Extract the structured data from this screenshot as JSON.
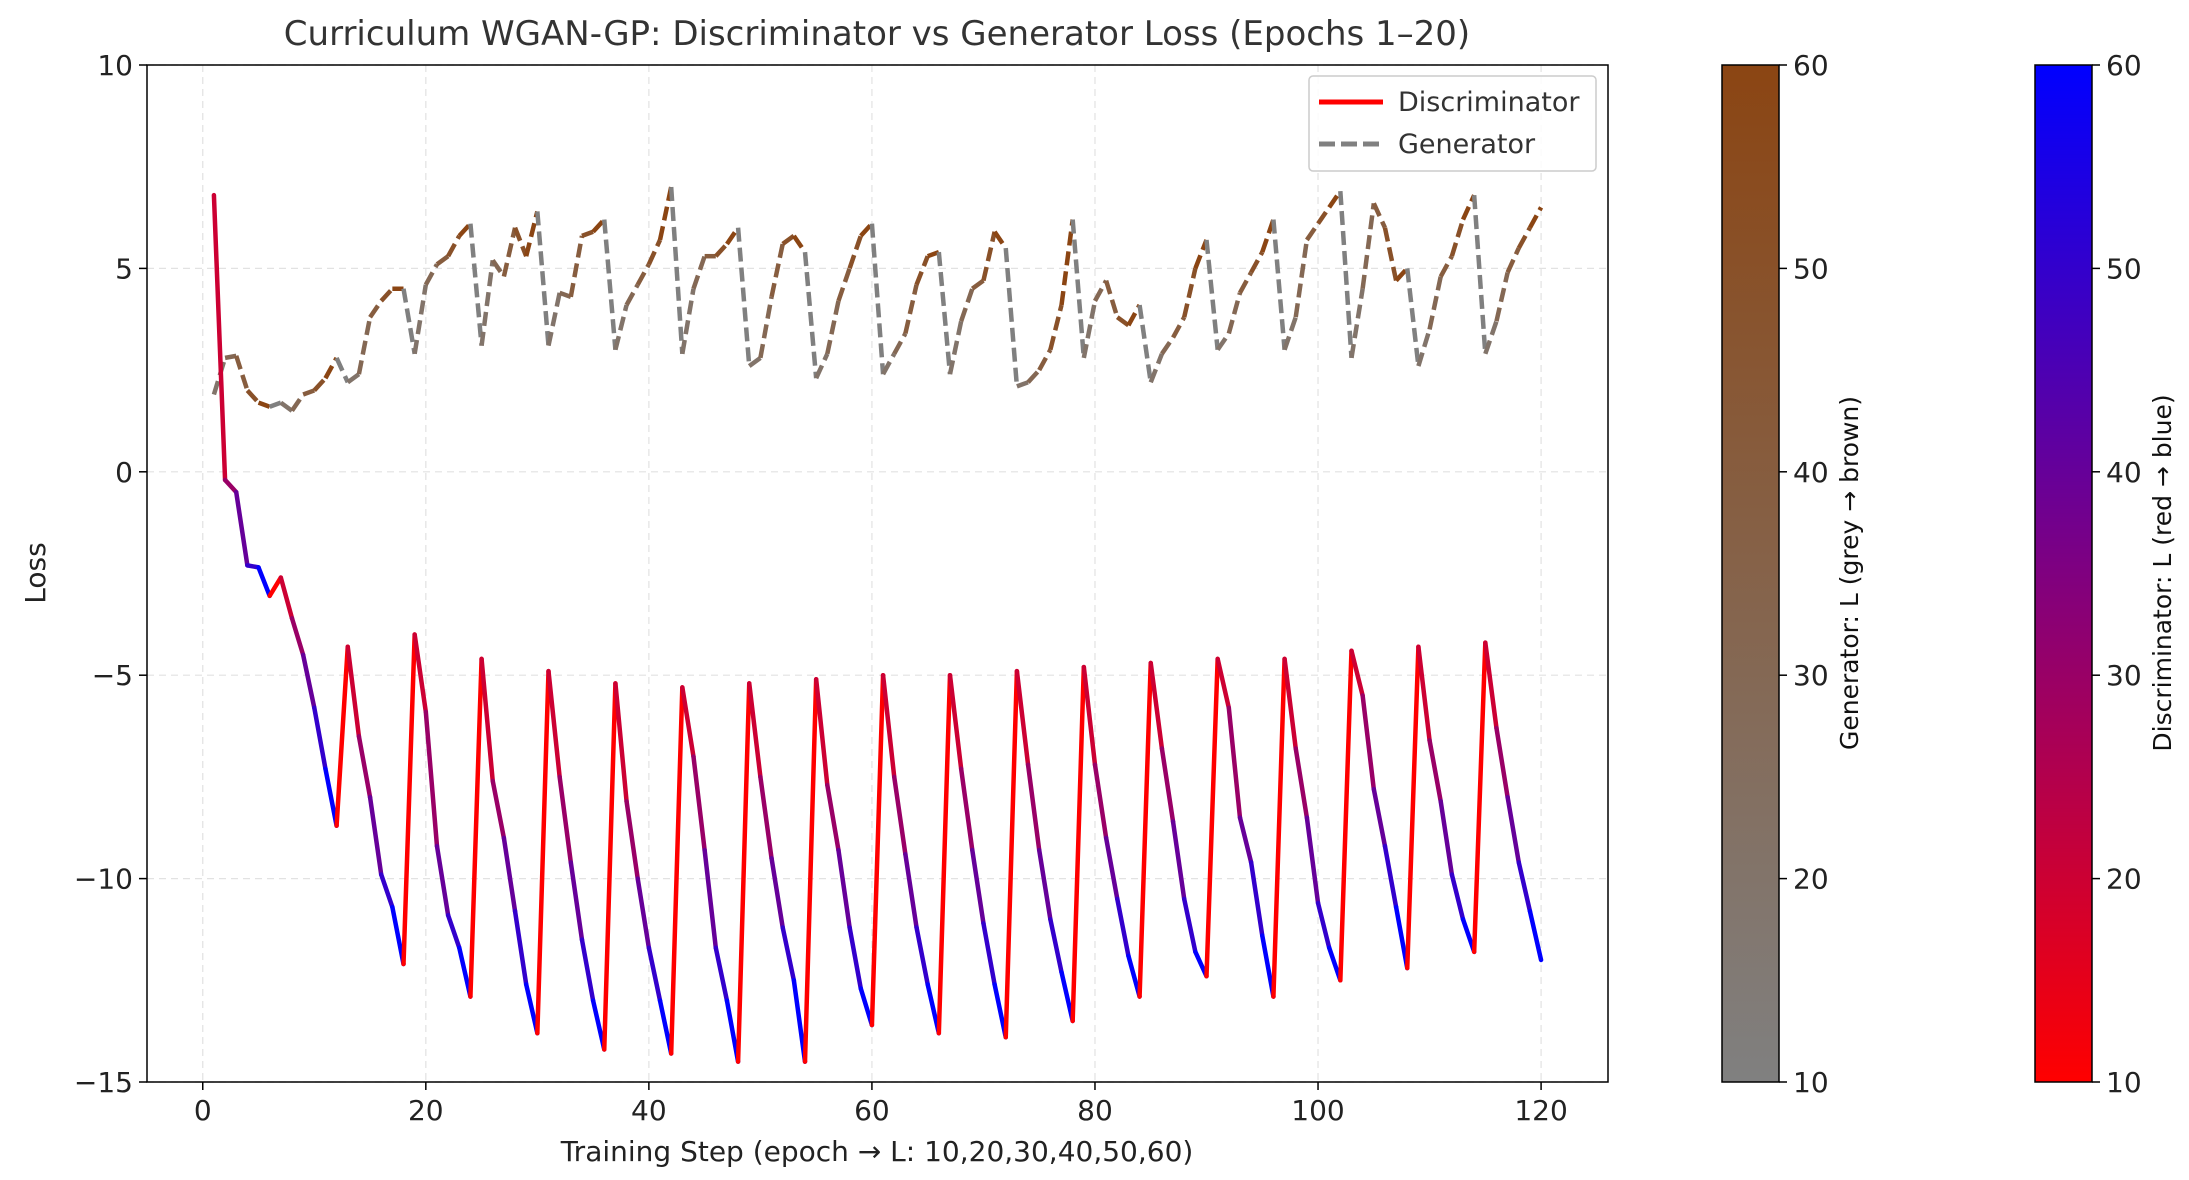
{
  "chart_data": {
    "type": "line",
    "title": "Curriculum WGAN-GP: Discriminator vs Generator Loss (Epochs 1–20)",
    "xlabel": "Training Step (epoch → L: 10,20,30,40,50,60)",
    "ylabel": "Loss",
    "xlim": [
      -5,
      126
    ],
    "ylim": [
      -15,
      10
    ],
    "xticks": [
      0,
      20,
      40,
      60,
      80,
      100,
      120
    ],
    "yticks": [
      10,
      5,
      0,
      -5,
      -10,
      -15
    ],
    "ytick_labels": [
      "10",
      "5",
      "0",
      "−5",
      "−10",
      "−15"
    ],
    "grid": true,
    "legend_position": "top-right",
    "series": [
      {
        "name": "Discriminator",
        "style": "solid",
        "color_from": "#ff0000",
        "color_to": "#0000ff",
        "x": [
          1,
          2,
          3,
          4,
          5,
          6,
          7,
          8,
          9,
          10,
          11,
          12,
          13,
          14,
          15,
          16,
          17,
          18,
          19,
          20,
          21,
          22,
          23,
          24,
          25,
          26,
          27,
          28,
          29,
          30,
          31,
          32,
          33,
          34,
          35,
          36,
          37,
          38,
          39,
          40,
          41,
          42,
          43,
          44,
          45,
          46,
          47,
          48,
          49,
          50,
          51,
          52,
          53,
          54,
          55,
          56,
          57,
          58,
          59,
          60,
          61,
          62,
          63,
          64,
          65,
          66,
          67,
          68,
          69,
          70,
          71,
          72,
          73,
          74,
          75,
          76,
          77,
          78,
          79,
          80,
          81,
          82,
          83,
          84,
          85,
          86,
          87,
          88,
          89,
          90,
          91,
          92,
          93,
          94,
          95,
          96,
          97,
          98,
          99,
          100,
          101,
          102,
          103,
          104,
          105,
          106,
          107,
          108,
          109,
          110,
          111,
          112,
          113,
          114,
          115,
          116,
          117,
          118,
          119,
          120
        ],
        "y": [
          6.8,
          -0.2,
          -0.5,
          -2.3,
          -2.35,
          -3.05,
          -2.6,
          -3.6,
          -4.5,
          -5.8,
          -7.3,
          -8.7,
          -4.3,
          -6.5,
          -8.0,
          -9.9,
          -10.7,
          -12.1,
          -4.0,
          -5.9,
          -9.2,
          -10.9,
          -11.7,
          -12.9,
          -4.6,
          -7.6,
          -9.0,
          -10.8,
          -12.6,
          -13.8,
          -4.9,
          -7.5,
          -9.6,
          -11.5,
          -13.0,
          -14.2,
          -5.2,
          -8.1,
          -10.0,
          -11.7,
          -13.0,
          -14.3,
          -5.3,
          -7.0,
          -9.3,
          -11.7,
          -13.0,
          -14.5,
          -5.2,
          -7.5,
          -9.5,
          -11.2,
          -12.5,
          -14.5,
          -5.1,
          -7.7,
          -9.3,
          -11.2,
          -12.7,
          -13.6,
          -5.0,
          -7.5,
          -9.4,
          -11.2,
          -12.6,
          -13.8,
          -5.0,
          -7.3,
          -9.3,
          -11.1,
          -12.6,
          -13.9,
          -4.9,
          -7.2,
          -9.3,
          -11.0,
          -12.3,
          -13.5,
          -4.8,
          -7.2,
          -9.0,
          -10.5,
          -11.9,
          -12.9,
          -4.7,
          -6.8,
          -8.6,
          -10.5,
          -11.8,
          -12.4,
          -4.6,
          -5.8,
          -8.5,
          -9.6,
          -11.4,
          -12.9,
          -4.6,
          -6.8,
          -8.5,
          -10.6,
          -11.7,
          -12.5,
          -4.4,
          -5.5,
          -7.8,
          -9.2,
          -10.7,
          -12.2,
          -4.3,
          -6.6,
          -8.1,
          -9.9,
          -11.0,
          -11.8,
          -4.2,
          -6.3,
          -8.0,
          -9.6,
          -10.8,
          -12.0
        ]
      },
      {
        "name": "Generator",
        "style": "dashed",
        "color_from": "#808080",
        "color_to": "#8b4513",
        "x": [
          1,
          2,
          3,
          4,
          5,
          6,
          7,
          8,
          9,
          10,
          11,
          12,
          13,
          14,
          15,
          16,
          17,
          18,
          19,
          20,
          21,
          22,
          23,
          24,
          25,
          26,
          27,
          28,
          29,
          30,
          31,
          32,
          33,
          34,
          35,
          36,
          37,
          38,
          39,
          40,
          41,
          42,
          43,
          44,
          45,
          46,
          47,
          48,
          49,
          50,
          51,
          52,
          53,
          54,
          55,
          56,
          57,
          58,
          59,
          60,
          61,
          62,
          63,
          64,
          65,
          66,
          67,
          68,
          69,
          70,
          71,
          72,
          73,
          74,
          75,
          76,
          77,
          78,
          79,
          80,
          81,
          82,
          83,
          84,
          85,
          86,
          87,
          88,
          89,
          90,
          91,
          92,
          93,
          94,
          95,
          96,
          97,
          98,
          99,
          100,
          101,
          102,
          103,
          104,
          105,
          106,
          107,
          108,
          109,
          110,
          111,
          112,
          113,
          114,
          115,
          116,
          117,
          118,
          119,
          120
        ],
        "y": [
          1.9,
          2.8,
          2.85,
          2.0,
          1.7,
          1.6,
          1.7,
          1.5,
          1.9,
          2.0,
          2.3,
          2.8,
          2.2,
          2.4,
          3.8,
          4.2,
          4.5,
          4.5,
          2.9,
          4.6,
          5.1,
          5.3,
          5.8,
          6.1,
          3.1,
          5.2,
          4.8,
          6.0,
          5.3,
          6.4,
          3.1,
          4.4,
          4.3,
          5.8,
          5.9,
          6.2,
          3.0,
          4.1,
          4.6,
          5.1,
          5.7,
          7.0,
          2.9,
          4.5,
          5.3,
          5.3,
          5.6,
          6.0,
          2.6,
          2.8,
          4.3,
          5.6,
          5.8,
          5.4,
          2.3,
          2.9,
          4.2,
          5.0,
          5.8,
          6.1,
          2.4,
          2.9,
          3.4,
          4.6,
          5.3,
          5.4,
          2.4,
          3.7,
          4.5,
          4.7,
          5.9,
          5.5,
          2.1,
          2.2,
          2.5,
          3.0,
          4.1,
          6.2,
          2.8,
          4.2,
          4.7,
          3.8,
          3.6,
          4.1,
          2.2,
          2.9,
          3.3,
          3.8,
          5.0,
          5.7,
          3.0,
          3.4,
          4.4,
          4.9,
          5.4,
          6.2,
          3.0,
          3.8,
          5.7,
          6.1,
          6.5,
          6.9,
          2.8,
          4.5,
          6.6,
          6.0,
          4.7,
          5.0,
          2.6,
          3.5,
          4.8,
          5.3,
          6.2,
          6.8,
          2.9,
          3.7,
          4.9,
          5.5,
          6.0,
          6.5
        ]
      }
    ],
    "colorbars": [
      {
        "label": "Generator: L (grey → brown)",
        "ticks": [
          "60",
          "50",
          "40",
          "30",
          "20",
          "10"
        ],
        "color_top": "#8b4513",
        "color_bottom": "#808080"
      },
      {
        "label": "Discriminator: L (red → blue)",
        "ticks": [
          "60",
          "50",
          "40",
          "30",
          "20",
          "10"
        ],
        "color_top": "#0000ff",
        "color_bottom": "#ff0000"
      }
    ]
  }
}
